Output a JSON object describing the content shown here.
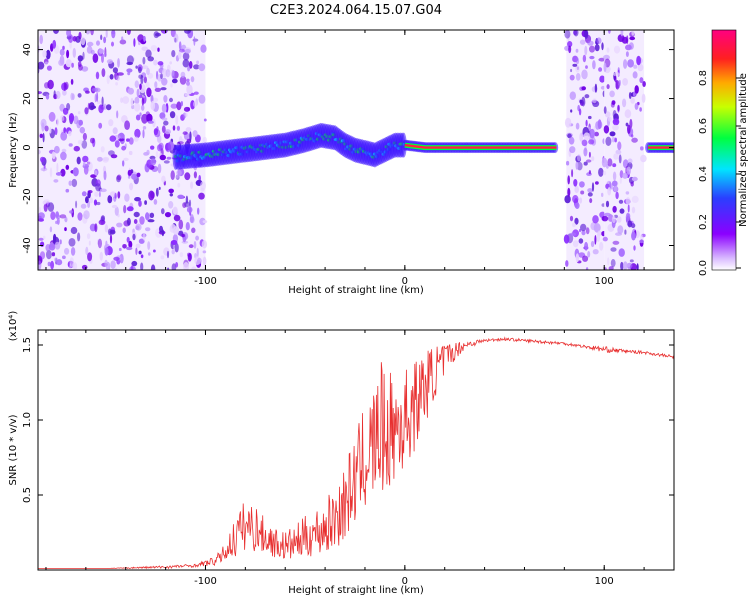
{
  "title": "C2E3.2024.064.15.07.G04",
  "chart_data": [
    {
      "type": "heatmap",
      "xlabel": "Height of straight line (km)",
      "ylabel": "Frequency (Hz)",
      "xlim": [
        -184,
        135
      ],
      "ylim": [
        -50,
        48
      ],
      "xticks": [
        "-100",
        "0",
        "100"
      ],
      "yticks": [
        "-40",
        "-20",
        "0",
        "20",
        "40"
      ],
      "grid": false,
      "colorbar": {
        "label": "Normalized spectral amplitude",
        "range": [
          0,
          1
        ],
        "ticks": [
          "0.0",
          "0.2",
          "0.4",
          "0.6",
          "0.8"
        ],
        "colors": [
          "#ffffff",
          "#8b00ff",
          "#2a3fff",
          "#00e5ff",
          "#00ff40",
          "#c8ff00",
          "#ffaa00",
          "#ff2020",
          "#ff0080"
        ]
      },
      "features": [
        {
          "name": "noise",
          "x_range": [
            -184,
            -100
          ]
        },
        {
          "name": "signal_band",
          "x": [
            -115,
            -100,
            -90,
            -80,
            -70,
            -60,
            -50,
            -42,
            -35,
            -30,
            -25,
            -20,
            -15,
            -10,
            -5,
            0,
            10,
            20,
            40,
            60,
            76
          ],
          "y": [
            -4,
            -3,
            -2,
            -1,
            0,
            1,
            3,
            5,
            4,
            1,
            -1,
            -2,
            -3,
            -1,
            1,
            1,
            0,
            0,
            0,
            0,
            0
          ]
        },
        {
          "name": "noise",
          "x_range": [
            81,
            100
          ]
        },
        {
          "name": "noise",
          "x_range": [
            100,
            120
          ]
        },
        {
          "name": "signal_band",
          "x": [
            122,
            135
          ],
          "y": [
            0,
            0
          ]
        }
      ]
    },
    {
      "type": "line",
      "xlabel": "Height of straight line (km)",
      "ylabel": "SNR (10 * v/v)",
      "y_multiplier": "(x10⁴)",
      "xlim": [
        -184,
        135
      ],
      "ylim": [
        0,
        1.6
      ],
      "xticks": [
        "-100",
        "0",
        "100"
      ],
      "yticks": [
        "0.5",
        "1.0",
        "1.5"
      ],
      "grid": false,
      "series": [
        {
          "color": "#e83030",
          "x": [
            -184,
            -150,
            -120,
            -105,
            -95,
            -90,
            -85,
            -80,
            -75,
            -70,
            -65,
            -60,
            -55,
            -50,
            -45,
            -40,
            -35,
            -30,
            -25,
            -20,
            -15,
            -12,
            -10,
            -5,
            0,
            5,
            10,
            15,
            20,
            25,
            30,
            40,
            50,
            60,
            70,
            80,
            90,
            100,
            110,
            120,
            135
          ],
          "y": [
            0.01,
            0.01,
            0.02,
            0.03,
            0.06,
            0.12,
            0.22,
            0.3,
            0.28,
            0.22,
            0.18,
            0.16,
            0.18,
            0.22,
            0.25,
            0.28,
            0.35,
            0.45,
            0.6,
            0.75,
            0.85,
            0.95,
            0.9,
            0.95,
            1.0,
            1.1,
            1.22,
            1.32,
            1.4,
            1.46,
            1.5,
            1.53,
            1.54,
            1.53,
            1.52,
            1.51,
            1.49,
            1.47,
            1.46,
            1.45,
            1.42
          ],
          "noise": [
            0,
            0,
            0.01,
            0.01,
            0.03,
            0.06,
            0.14,
            0.18,
            0.16,
            0.12,
            0.1,
            0.1,
            0.12,
            0.14,
            0.16,
            0.18,
            0.22,
            0.26,
            0.3,
            0.35,
            0.4,
            0.45,
            0.4,
            0.38,
            0.35,
            0.3,
            0.25,
            0.18,
            0.12,
            0.06,
            0.03,
            0.01,
            0.01,
            0.01,
            0.01,
            0.01,
            0.01,
            0.02,
            0.01,
            0.01,
            0.01
          ]
        }
      ]
    }
  ]
}
